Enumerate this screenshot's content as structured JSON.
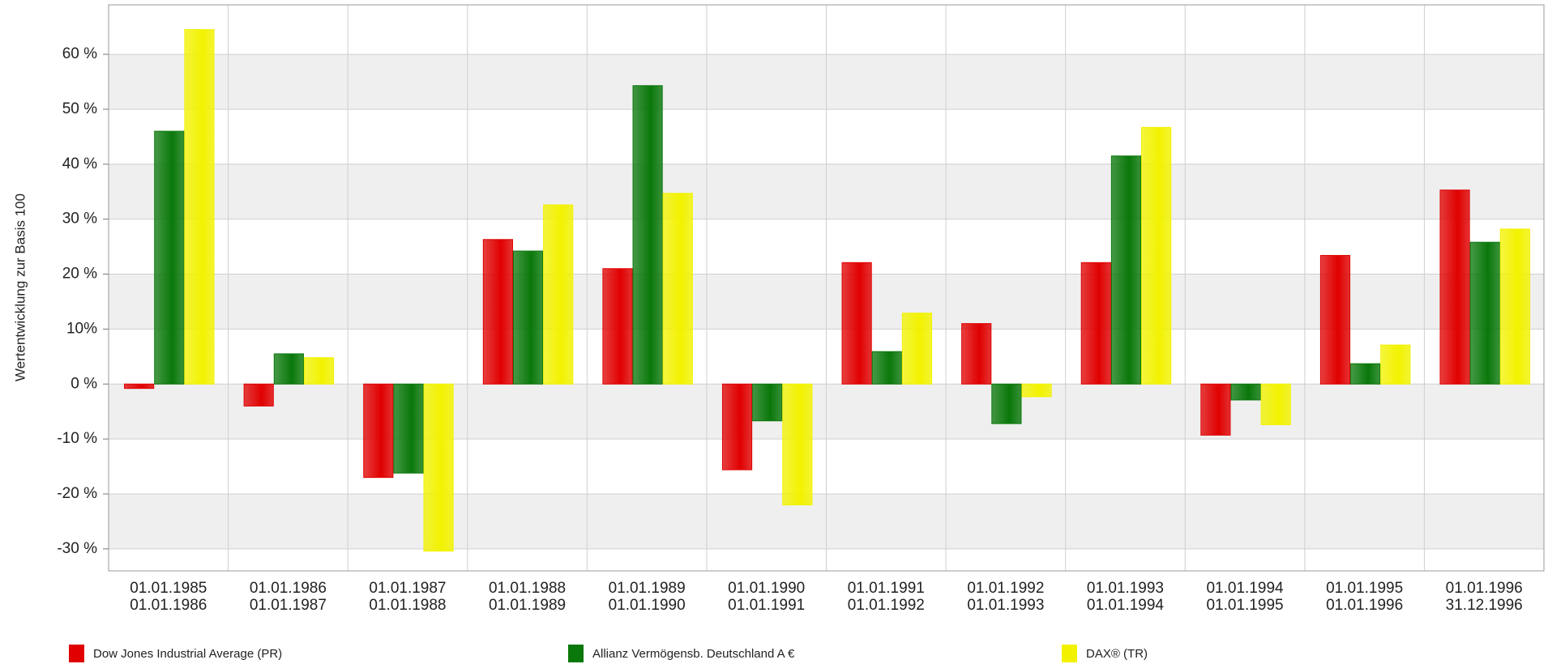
{
  "chart_data": {
    "type": "bar",
    "y_axis_label": "Wertentwicklung zur Basis 100",
    "categories": [
      [
        "01.01.1985",
        "01.01.1986"
      ],
      [
        "01.01.1986",
        "01.01.1987"
      ],
      [
        "01.01.1987",
        "01.01.1988"
      ],
      [
        "01.01.1988",
        "01.01.1989"
      ],
      [
        "01.01.1989",
        "01.01.1990"
      ],
      [
        "01.01.1990",
        "01.01.1991"
      ],
      [
        "01.01.1991",
        "01.01.1992"
      ],
      [
        "01.01.1992",
        "01.01.1993"
      ],
      [
        "01.01.1993",
        "01.01.1994"
      ],
      [
        "01.01.1994",
        "01.01.1995"
      ],
      [
        "01.01.1995",
        "01.01.1996"
      ],
      [
        "01.01.1996",
        "31.12.1996"
      ]
    ],
    "series": [
      {
        "name": "Dow Jones Industrial Average (PR)",
        "color": "#e00000",
        "values": [
          -0.8,
          -4,
          -17,
          26.3,
          21,
          -15.6,
          22.1,
          11,
          22.1,
          -9.3,
          23.4,
          35.3
        ]
      },
      {
        "name": "Allianz Vermögensb. Deutschland A €",
        "color": "#0a780a",
        "values": [
          46,
          5.5,
          -16.2,
          24.2,
          54.3,
          -6.7,
          5.9,
          -7.2,
          41.5,
          -2.9,
          3.7,
          25.8
        ]
      },
      {
        "name": "DAX® (TR)",
        "color": "#f2f200",
        "values": [
          64.5,
          4.8,
          -30.4,
          32.6,
          34.7,
          -22,
          12.9,
          -2.3,
          46.7,
          -7.4,
          7.1,
          28.2
        ]
      }
    ],
    "ylim": [
      -34,
      69
    ],
    "yticks": [
      {
        "value": -30,
        "label": "-30 %"
      },
      {
        "value": -20,
        "label": "-20 %"
      },
      {
        "value": -10,
        "label": "-10 %"
      },
      {
        "value": 0,
        "label": "0 %"
      },
      {
        "value": 10,
        "label": "10%"
      },
      {
        "value": 20,
        "label": "20 %"
      },
      {
        "value": 30,
        "label": "30 %"
      },
      {
        "value": 40,
        "label": "40 %"
      },
      {
        "value": 50,
        "label": "50 %"
      },
      {
        "value": 60,
        "label": "60 %"
      }
    ],
    "grid": true
  }
}
